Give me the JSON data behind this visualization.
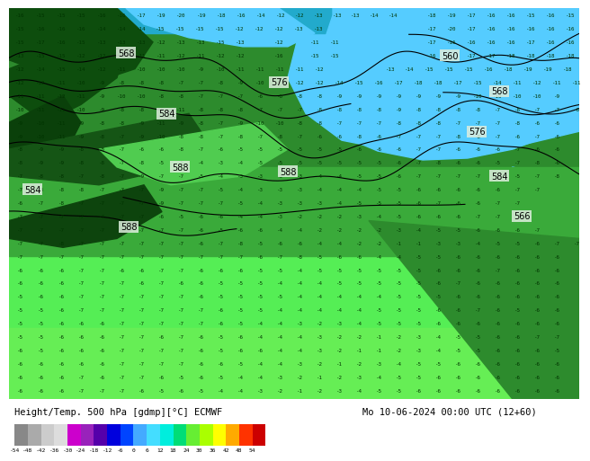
{
  "title_left": "Height/Temp. 500 hPa [gdmp][°C] ECMWF",
  "title_right": "Mo 10-06-2024 00:00 UTC (12+60)",
  "colorbar_values": [
    "-54",
    "-48",
    "-42",
    "-36",
    "-30",
    "-24",
    "-18",
    "-12",
    "-6",
    "0",
    "6",
    "12",
    "18",
    "24",
    "30",
    "36",
    "42",
    "48",
    "54"
  ],
  "colorbar_colors": [
    "#888888",
    "#aaaaaa",
    "#cccccc",
    "#dddddd",
    "#cc00cc",
    "#9922bb",
    "#5500aa",
    "#0000dd",
    "#0044ff",
    "#44aaff",
    "#44ddff",
    "#00eedd",
    "#00dd77",
    "#66ee33",
    "#aaff00",
    "#ffff00",
    "#ffaa00",
    "#ff3300",
    "#cc0000"
  ],
  "bg_white": "#ffffff",
  "ocean_color": "#55ccff",
  "land_dark_green": "#1a6b1a",
  "land_medium_green": "#2d8b2d",
  "land_light_green": "#44bb44",
  "land_bright_green": "#55ee55",
  "dark_forest": "#0d4d0d",
  "contour_color": "#000000",
  "label_bg": "#e8f0e0",
  "label_text": "#000000",
  "small_num_color": "#003300"
}
